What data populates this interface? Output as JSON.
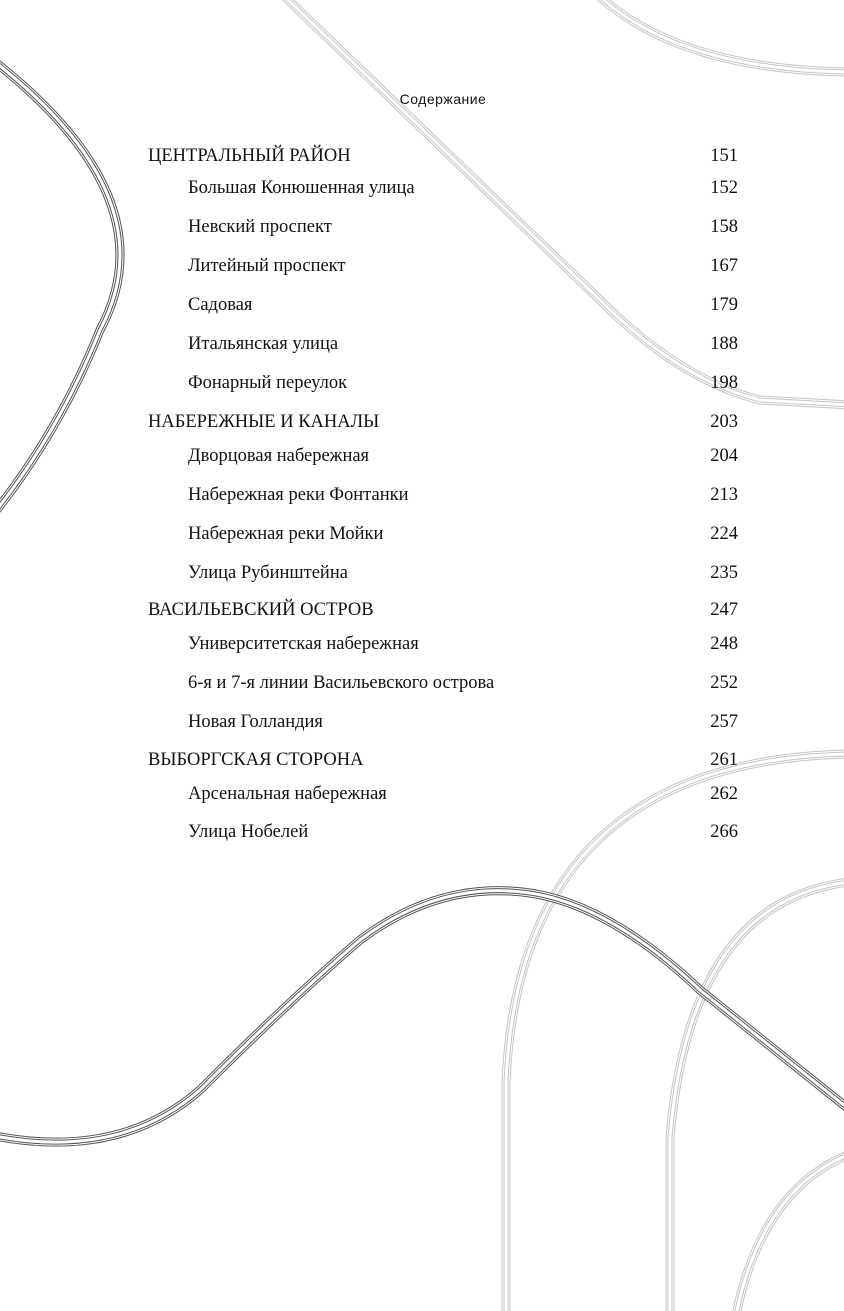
{
  "header": {
    "title": "Содержание"
  },
  "toc": [
    {
      "level": "section",
      "label": "ЦЕНТРАЛЬНЫЙ РАЙОН",
      "page": "151"
    },
    {
      "level": "sub",
      "label": "Большая Конюшенная улица",
      "page": "152"
    },
    {
      "level": "sub",
      "label": "Невский проспект",
      "page": "158"
    },
    {
      "level": "sub",
      "label": "Литейный проспект",
      "page": "167"
    },
    {
      "level": "sub",
      "label": "Садовая",
      "page": "179"
    },
    {
      "level": "sub",
      "label": "Итальянская улица",
      "page": "188"
    },
    {
      "level": "sub",
      "label": "Фонарный переулок",
      "page": "198"
    },
    {
      "level": "section",
      "label": "НАБЕРЕЖНЫЕ И КАНАЛЫ",
      "page": "203"
    },
    {
      "level": "sub",
      "label": "Дворцовая набережная",
      "page": "204"
    },
    {
      "level": "sub",
      "label": "Набережная реки Фонтанки",
      "page": "213"
    },
    {
      "level": "sub",
      "label": "Набережная реки Мойки",
      "page": "224"
    },
    {
      "level": "sub",
      "label": "Улица Рубинштейна",
      "page": "235"
    },
    {
      "level": "section",
      "label": "ВАСИЛЬЕВСКИЙ ОСТРОВ",
      "page": "247"
    },
    {
      "level": "sub",
      "label": "Университетская набережная",
      "page": "248"
    },
    {
      "level": "sub",
      "label": "6-я и 7-я линии Васильевского острова",
      "page": "252"
    },
    {
      "level": "sub",
      "label": "Новая Голландия",
      "page": "257"
    },
    {
      "level": "section",
      "label": "ВЫБОРГСКАЯ СТОРОНА",
      "page": "261"
    },
    {
      "level": "sub",
      "label": "Арсенальная набережная",
      "page": "262"
    },
    {
      "level": "sub",
      "label": "Улица Нобелей",
      "page": "266"
    }
  ],
  "colors": {
    "dark_lines": "#555555",
    "light_lines": "#c4c4c4",
    "text": "#111111"
  }
}
